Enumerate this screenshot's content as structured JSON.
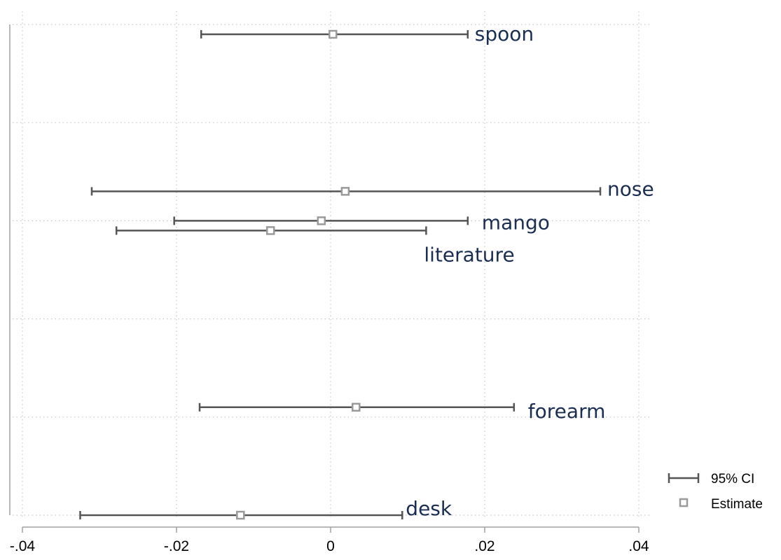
{
  "chart_data": {
    "type": "scatter",
    "xlim": [
      -0.04,
      0.04
    ],
    "x_ticks": [
      -0.04,
      -0.02,
      0,
      0.02,
      0.04
    ],
    "x_tick_labels": [
      "-.04",
      "-.02",
      "0",
      ".02",
      ".04"
    ],
    "grid": true,
    "legend_position": "bottom-right",
    "legend": [
      {
        "name": "95% CI",
        "symbol": "capped-line"
      },
      {
        "name": "Estimate",
        "symbol": "hollow-square"
      }
    ],
    "colors": {
      "ci_line": "#555555",
      "estimate_marker": "#9a9a9a",
      "label_text": "#1a2e52",
      "grid": "#c8c8c8"
    },
    "points": [
      {
        "label": "spoon",
        "estimate": 0.0003,
        "ci_low": -0.0168,
        "ci_high": 0.0178,
        "row": 0.1
      },
      {
        "label": "nose",
        "estimate": 0.0019,
        "ci_low": -0.031,
        "ci_high": 0.035,
        "row": 1.7
      },
      {
        "label": "mango",
        "estimate": -0.0012,
        "ci_low": -0.0203,
        "ci_high": 0.0178,
        "row": 2.0
      },
      {
        "label": "literature",
        "estimate": -0.0078,
        "ci_low": -0.0278,
        "ci_high": 0.0124,
        "row": 2.1
      },
      {
        "label": "forearm",
        "estimate": 0.0033,
        "ci_low": -0.017,
        "ci_high": 0.0238,
        "row": 3.9
      },
      {
        "label": "desk",
        "estimate": -0.0117,
        "ci_low": -0.0325,
        "ci_high": 0.0093,
        "row": 5.0
      }
    ]
  }
}
